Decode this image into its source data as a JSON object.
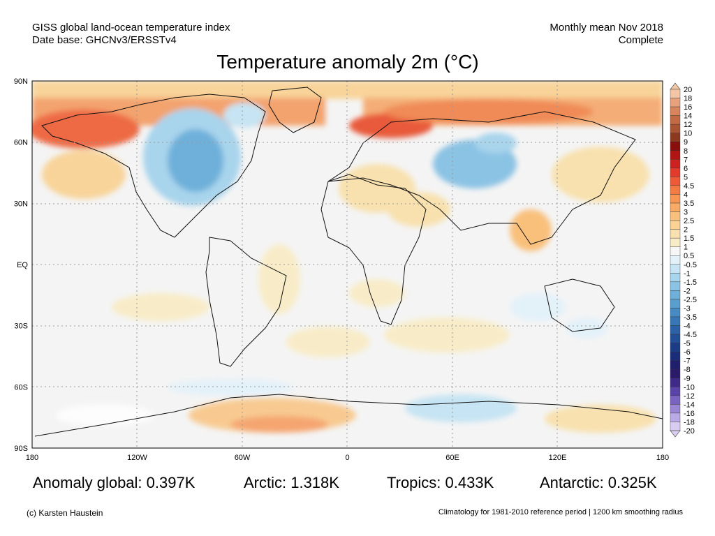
{
  "header": {
    "left_line1": "GISS global land-ocean temperature index",
    "left_line2": "Date base: GHCNv3/ERSSTv4",
    "right_line1": "Monthly mean Nov 2018",
    "right_line2": "Complete"
  },
  "title": "Temperature anomaly 2m (°C)",
  "map": {
    "lat_labels": [
      "90N",
      "60N",
      "30N",
      "EQ",
      "30S",
      "60S",
      "90S"
    ],
    "lon_labels": [
      "180",
      "120W",
      "60W",
      "0",
      "60E",
      "120E",
      "180"
    ]
  },
  "colorbar": {
    "labels": [
      "20",
      "18",
      "16",
      "14",
      "12",
      "10",
      "9",
      "8",
      "7",
      "6",
      "5",
      "4.5",
      "4",
      "3.5",
      "3",
      "2.5",
      "2",
      "1.5",
      "1",
      "0.5",
      "-0.5",
      "-1",
      "-1.5",
      "-2",
      "-2.5",
      "-3",
      "-3.5",
      "-4",
      "-4.5",
      "-5",
      "-6",
      "-7",
      "-8",
      "-9",
      "-10",
      "-12",
      "-14",
      "-16",
      "-18",
      "-20"
    ],
    "colors": [
      "#f2c6a6",
      "#e7a27d",
      "#d8845d",
      "#c26a43",
      "#a95533",
      "#8c3a1f",
      "#8b0e0e",
      "#b01414",
      "#cd2222",
      "#e23b2b",
      "#ee5a37",
      "#f47a43",
      "#f79553",
      "#f8ab66",
      "#f9c07c",
      "#f9d294",
      "#f8e1ae",
      "#f8ecc8",
      "#f6f6f6",
      "#e3f1f9",
      "#c6e4f3",
      "#a8d4ec",
      "#8bc3e4",
      "#6eb0da",
      "#589ecf",
      "#468bc3",
      "#3777b6",
      "#2b62a7",
      "#234f98",
      "#1c3c88",
      "#1a2d7a",
      "#201f6e",
      "#2b1a6b",
      "#3f2a8a",
      "#5a43a8",
      "#7a62c1",
      "#9a86d4",
      "#b9a9e4",
      "#d8cdf1"
    ]
  },
  "stats": {
    "global": "Anomaly global: 0.397K",
    "arctic": "Arctic: 1.318K",
    "tropics": "Tropics: 0.433K",
    "antarctic": "Antarctic: 0.325K"
  },
  "footer": {
    "credit": "(c) Karsten Haustein",
    "note": "Climatology for 1981-2010 reference period | 1200 km smoothing radius"
  }
}
